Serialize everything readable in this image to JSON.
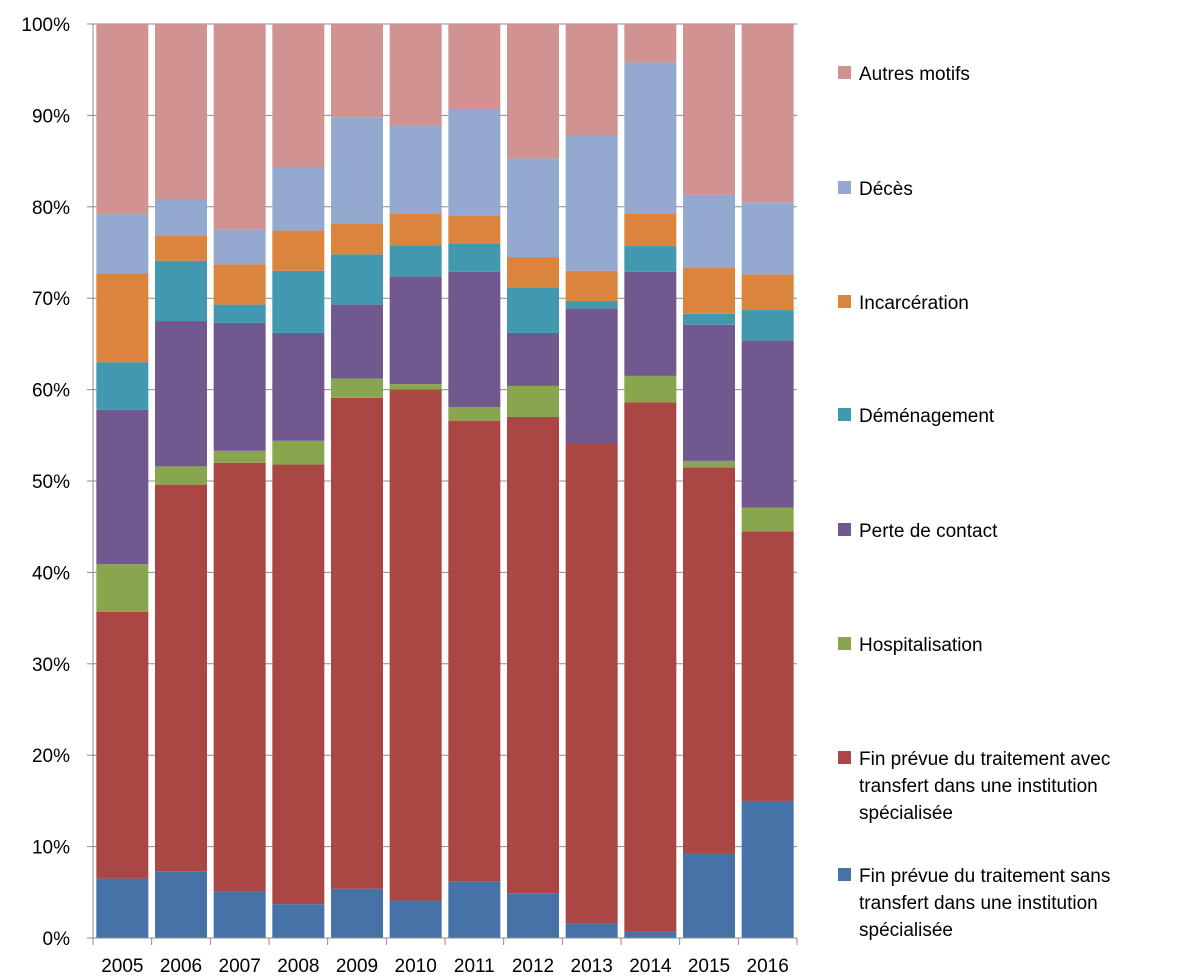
{
  "chart_data": {
    "type": "bar",
    "stacked": true,
    "percent": true,
    "categories": [
      "2005",
      "2006",
      "2007",
      "2008",
      "2009",
      "2010",
      "2011",
      "2012",
      "2013",
      "2014",
      "2015",
      "2016"
    ],
    "ylim": [
      0,
      100
    ],
    "yticks": [
      "0%",
      "10%",
      "20%",
      "30%",
      "40%",
      "50%",
      "60%",
      "70%",
      "80%",
      "90%",
      "100%"
    ],
    "grid": true,
    "legend_position": "right",
    "series": [
      {
        "name": "Fin prévue du traitement sans transfert dans une institution spécialisée",
        "legend_lines": [
          "Fin prévue du traitement sans",
          "transfert dans une institution",
          "spécialisée"
        ],
        "color": "#4672A8",
        "values": [
          6.5,
          7.3,
          5.1,
          3.7,
          5.4,
          4.1,
          6.2,
          4.9,
          1.6,
          0.7,
          9.3,
          15.0
        ]
      },
      {
        "name": "Fin prévue du traitement avec transfert dans une institution spécialisée",
        "legend_lines": [
          "Fin prévue du traitement avec",
          "transfert dans une institution",
          "spécialisée"
        ],
        "color": "#AA4643",
        "values": [
          29.2,
          42.3,
          46.9,
          48.1,
          53.7,
          55.9,
          50.4,
          52.1,
          52.5,
          57.9,
          42.2,
          29.5
        ]
      },
      {
        "name": "Hospitalisation",
        "legend_lines": [
          "Hospitalisation"
        ],
        "color": "#89A54E",
        "values": [
          5.2,
          2.0,
          1.3,
          2.6,
          2.1,
          0.6,
          1.5,
          3.4,
          0.0,
          2.9,
          0.7,
          2.6
        ]
      },
      {
        "name": "Perte de contact",
        "legend_lines": [
          "Perte de contact"
        ],
        "color": "#71588F",
        "values": [
          16.9,
          15.9,
          14.0,
          11.8,
          8.1,
          11.8,
          14.8,
          5.8,
          14.8,
          11.4,
          14.9,
          18.3
        ]
      },
      {
        "name": "Déménagement",
        "legend_lines": [
          "Déménagement"
        ],
        "color": "#4198AF",
        "values": [
          5.2,
          6.6,
          2.0,
          6.8,
          5.5,
          3.4,
          3.1,
          5.0,
          0.8,
          2.8,
          1.2,
          3.3
        ]
      },
      {
        "name": "Incarcération",
        "legend_lines": [
          "Incarcération"
        ],
        "color": "#DB843D",
        "values": [
          9.7,
          2.7,
          4.4,
          4.4,
          3.4,
          3.5,
          3.0,
          3.3,
          3.3,
          3.6,
          5.0,
          3.9
        ]
      },
      {
        "name": "Décès",
        "legend_lines": [
          "Décès"
        ],
        "color": "#93A9CF",
        "values": [
          6.5,
          4.0,
          3.8,
          6.9,
          11.6,
          9.6,
          11.7,
          10.8,
          14.8,
          16.5,
          8.0,
          7.9
        ]
      },
      {
        "name": "Autres motifs",
        "legend_lines": [
          "Autres motifs"
        ],
        "color": "#D19392",
        "values": [
          20.8,
          19.2,
          22.5,
          15.7,
          10.2,
          11.1,
          9.3,
          14.7,
          12.2,
          4.2,
          18.7,
          19.5
        ]
      }
    ]
  }
}
